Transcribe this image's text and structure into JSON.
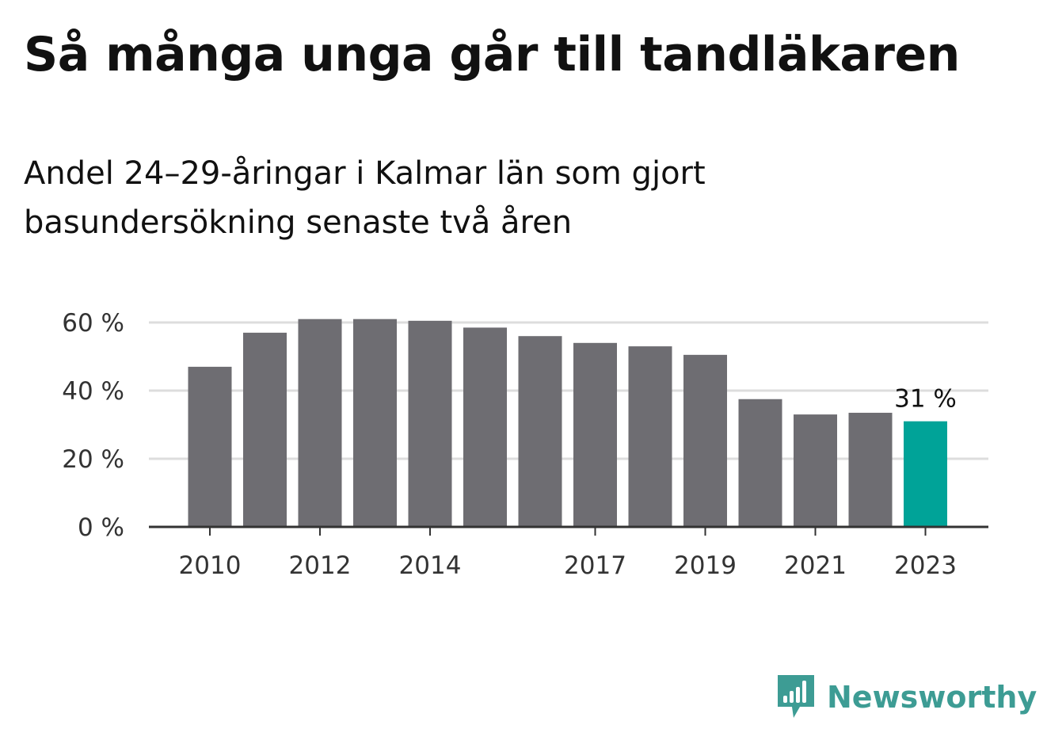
{
  "chart_data": {
    "type": "bar",
    "title": "Så många unga går till tandläkaren",
    "subtitle": "Andel 24–29-åringar i Kalmar län som gjort basundersökning senaste två åren",
    "categories": [
      "2010",
      "2011",
      "2012",
      "2013",
      "2014",
      "2015",
      "2016",
      "2017",
      "2018",
      "2019",
      "2020",
      "2021",
      "2022",
      "2023"
    ],
    "values": [
      47,
      57,
      61,
      61,
      60.5,
      58.5,
      56,
      54,
      53,
      50.5,
      37.5,
      33,
      33.5,
      31
    ],
    "x_tick_labels": [
      "2010",
      "2012",
      "2014",
      "2017",
      "2019",
      "2021",
      "2023"
    ],
    "y_ticks": [
      0,
      20,
      40,
      60
    ],
    "y_tick_labels": [
      "0 %",
      "20 %",
      "40 %",
      "60 %"
    ],
    "ylim": [
      0,
      60
    ],
    "grid": true,
    "colors": {
      "bar": "#6e6d72",
      "highlight": "#00a398",
      "grid": "#dddddd",
      "axis": "#333333"
    },
    "highlight_index": 13,
    "annotation": {
      "category": "2023",
      "text": "31 %"
    }
  },
  "brand": {
    "name": "Newsworthy",
    "color": "#3d9c94",
    "icon": "newsworthy-logo-icon"
  }
}
